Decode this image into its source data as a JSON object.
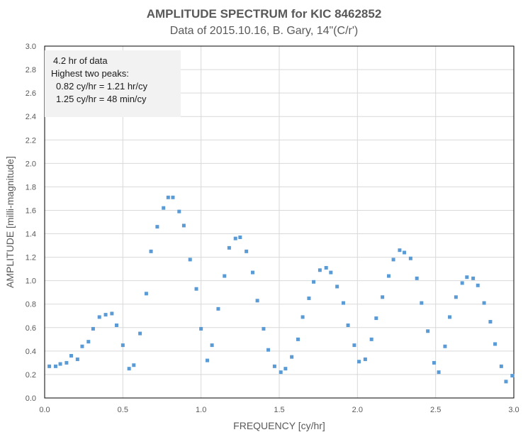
{
  "chart_data": {
    "type": "scatter",
    "title": "AMPLITUDE SPECTRUM for KIC 8462852",
    "subtitle": "Data of 2015.10.16, B. Gary, 14\"(C/r')",
    "xlabel": "FREQUENCY [cy/hr]",
    "ylabel": "AMPLITUDE [milli-magnitude]",
    "xlim": [
      0.0,
      3.0
    ],
    "ylim": [
      0.0,
      3.0
    ],
    "x_ticks": [
      "0.0",
      "0.5",
      "1.0",
      "1.5",
      "2.0",
      "2.5",
      "3.0"
    ],
    "y_ticks": [
      "0.0",
      "0.2",
      "0.4",
      "0.6",
      "0.8",
      "1.0",
      "1.2",
      "1.4",
      "1.6",
      "1.8",
      "2.0",
      "2.2",
      "2.4",
      "2.6",
      "2.8",
      "3.0"
    ],
    "grid": true,
    "marker_color": "#5b9bd5",
    "annotation": {
      "line1": "4.2 hr of data",
      "line2": "Highest two peaks:",
      "line3": "0.82 cy/hr = 1.21 hr/cy",
      "line4": "1.25 cy/hr = 48 min/cy"
    },
    "series": [
      {
        "points": [
          [
            0.03,
            0.27
          ],
          [
            0.07,
            0.27
          ],
          [
            0.1,
            0.29
          ],
          [
            0.14,
            0.3
          ],
          [
            0.17,
            0.36
          ],
          [
            0.21,
            0.33
          ],
          [
            0.24,
            0.44
          ],
          [
            0.28,
            0.48
          ],
          [
            0.31,
            0.59
          ],
          [
            0.35,
            0.69
          ],
          [
            0.39,
            0.71
          ],
          [
            0.43,
            0.72
          ],
          [
            0.46,
            0.62
          ],
          [
            0.5,
            0.45
          ],
          [
            0.54,
            0.25
          ],
          [
            0.57,
            0.28
          ],
          [
            0.61,
            0.55
          ],
          [
            0.65,
            0.89
          ],
          [
            0.68,
            1.25
          ],
          [
            0.72,
            1.46
          ],
          [
            0.76,
            1.62
          ],
          [
            0.79,
            1.71
          ],
          [
            0.82,
            1.71
          ],
          [
            0.86,
            1.59
          ],
          [
            0.89,
            1.47
          ],
          [
            0.93,
            1.18
          ],
          [
            0.97,
            0.93
          ],
          [
            1.0,
            0.59
          ],
          [
            1.04,
            0.32
          ],
          [
            1.07,
            0.45
          ],
          [
            1.11,
            0.76
          ],
          [
            1.15,
            1.04
          ],
          [
            1.18,
            1.28
          ],
          [
            1.22,
            1.36
          ],
          [
            1.25,
            1.37
          ],
          [
            1.29,
            1.25
          ],
          [
            1.33,
            1.07
          ],
          [
            1.36,
            0.83
          ],
          [
            1.4,
            0.59
          ],
          [
            1.43,
            0.41
          ],
          [
            1.47,
            0.27
          ],
          [
            1.51,
            0.22
          ],
          [
            1.54,
            0.25
          ],
          [
            1.58,
            0.35
          ],
          [
            1.62,
            0.5
          ],
          [
            1.65,
            0.69
          ],
          [
            1.69,
            0.85
          ],
          [
            1.72,
            0.99
          ],
          [
            1.76,
            1.09
          ],
          [
            1.8,
            1.11
          ],
          [
            1.83,
            1.07
          ],
          [
            1.87,
            0.95
          ],
          [
            1.91,
            0.81
          ],
          [
            1.94,
            0.62
          ],
          [
            1.98,
            0.45
          ],
          [
            2.01,
            0.31
          ],
          [
            2.05,
            0.33
          ],
          [
            2.09,
            0.5
          ],
          [
            2.12,
            0.68
          ],
          [
            2.16,
            0.86
          ],
          [
            2.2,
            1.04
          ],
          [
            2.23,
            1.18
          ],
          [
            2.27,
            1.26
          ],
          [
            2.3,
            1.24
          ],
          [
            2.34,
            1.19
          ],
          [
            2.38,
            1.02
          ],
          [
            2.41,
            0.81
          ],
          [
            2.45,
            0.57
          ],
          [
            2.49,
            0.3
          ],
          [
            2.52,
            0.22
          ],
          [
            2.56,
            0.44
          ],
          [
            2.59,
            0.69
          ],
          [
            2.63,
            0.86
          ],
          [
            2.67,
            0.98
          ],
          [
            2.7,
            1.03
          ],
          [
            2.74,
            1.02
          ],
          [
            2.77,
            0.96
          ],
          [
            2.81,
            0.81
          ],
          [
            2.85,
            0.65
          ],
          [
            2.88,
            0.46
          ],
          [
            2.92,
            0.27
          ],
          [
            2.95,
            0.14
          ],
          [
            2.99,
            0.19
          ]
        ]
      }
    ]
  }
}
